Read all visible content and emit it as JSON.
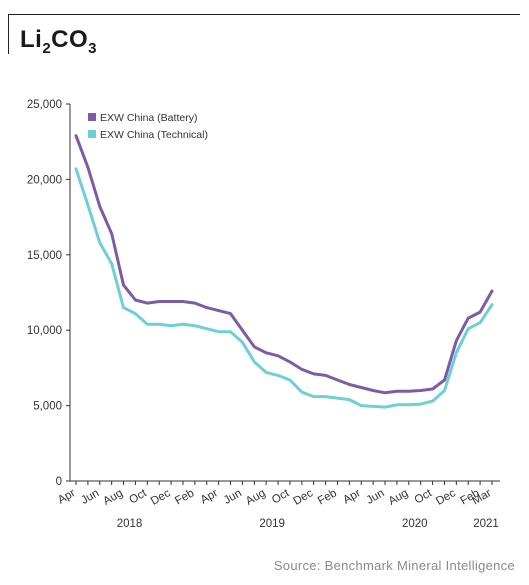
{
  "header": {
    "title_main": "Li",
    "title_sub1": "2",
    "title_mid": "CO",
    "title_sub2": "3"
  },
  "source": "Source: Benchmark Mineral Intelligence",
  "chart_data": {
    "type": "line",
    "title": "Li2CO3",
    "ylim": [
      0,
      25000
    ],
    "yticks": [
      0,
      5000,
      10000,
      15000,
      20000,
      25000
    ],
    "ytick_labels": [
      "0",
      "5,000",
      "10,000",
      "15,000",
      "20,000",
      "25,000"
    ],
    "grid": false,
    "legend_position": "top-left",
    "month_labels": [
      {
        "label": "Apr",
        "i": 0
      },
      {
        "label": "Jun",
        "i": 2
      },
      {
        "label": "Aug",
        "i": 4
      },
      {
        "label": "Oct",
        "i": 6
      },
      {
        "label": "Dec",
        "i": 8
      },
      {
        "label": "Feb",
        "i": 10
      },
      {
        "label": "Apr",
        "i": 12
      },
      {
        "label": "Jun",
        "i": 14
      },
      {
        "label": "Aug",
        "i": 16
      },
      {
        "label": "Oct",
        "i": 18
      },
      {
        "label": "Dec",
        "i": 20
      },
      {
        "label": "Feb",
        "i": 22
      },
      {
        "label": "Apr",
        "i": 24
      },
      {
        "label": "Jun",
        "i": 26
      },
      {
        "label": "Aug",
        "i": 28
      },
      {
        "label": "Oct",
        "i": 30
      },
      {
        "label": "Dec",
        "i": 32
      },
      {
        "label": "Feb",
        "i": 34
      },
      {
        "label": "Mar",
        "i": 35
      }
    ],
    "year_labels": [
      {
        "label": "2018",
        "i": 4.5
      },
      {
        "label": "2019",
        "i": 16.5
      },
      {
        "label": "2020",
        "i": 28.5
      },
      {
        "label": "2021",
        "i": 34.5
      }
    ],
    "x_count": 36,
    "series": [
      {
        "name": "EXW China (Battery)",
        "color": "#7c5ca6",
        "values": [
          22900,
          20800,
          18200,
          16400,
          13000,
          12000,
          11800,
          11900,
          11900,
          11900,
          11800,
          11500,
          11300,
          11100,
          10000,
          8900,
          8500,
          8300,
          7900,
          7400,
          7100,
          7000,
          6700,
          6400,
          6200,
          6000,
          5850,
          5950,
          5950,
          6000,
          6100,
          6700,
          9300,
          10800,
          11200,
          12600
        ]
      },
      {
        "name": "EXW China (Technical)",
        "color": "#6ecfd4",
        "values": [
          20700,
          18300,
          15800,
          14400,
          11500,
          11100,
          10400,
          10400,
          10300,
          10400,
          10300,
          10100,
          9900,
          9900,
          9200,
          7900,
          7200,
          7000,
          6700,
          5900,
          5600,
          5600,
          5500,
          5400,
          5000,
          4950,
          4900,
          5050,
          5050,
          5100,
          5300,
          6000,
          8500,
          10100,
          10500,
          11700
        ]
      }
    ]
  }
}
